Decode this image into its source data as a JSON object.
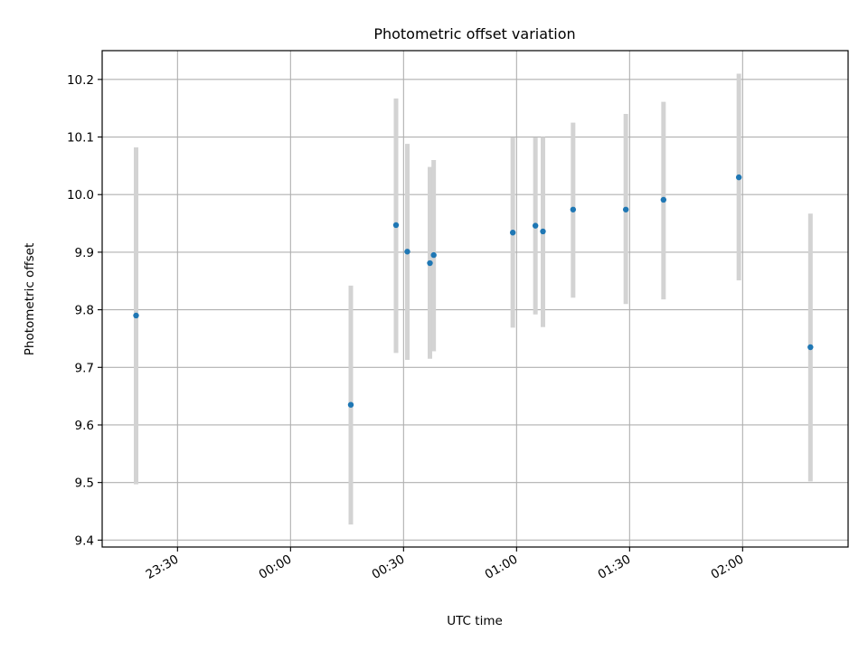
{
  "chart_data": {
    "type": "scatter",
    "title": "Photometric offset variation",
    "xlabel": "UTC time",
    "ylabel": "Photometric offset",
    "x_ticks": [
      "23:30",
      "00:00",
      "00:30",
      "01:00",
      "01:30",
      "02:00"
    ],
    "y_ticks": [
      "9.4",
      "9.5",
      "9.6",
      "9.7",
      "9.8",
      "9.9",
      "10.0",
      "10.1",
      "10.2"
    ],
    "xlim": [
      "23:10",
      "02:28"
    ],
    "ylim": [
      9.388,
      10.25
    ],
    "grid": true,
    "colors": {
      "point": "#1f77b4",
      "errorbar": "#d3d3d3",
      "grid": "#b0b0b0"
    },
    "series": [
      {
        "x": [
          "23:19",
          "00:16",
          "00:28",
          "00:31",
          "00:37",
          "00:38",
          "00:59",
          "01:05",
          "01:07",
          "01:15",
          "01:29",
          "01:39",
          "01:59",
          "02:18"
        ],
        "y": [
          9.79,
          9.635,
          9.947,
          9.901,
          9.881,
          9.895,
          9.934,
          9.946,
          9.936,
          9.974,
          9.974,
          9.991,
          10.03,
          9.735
        ],
        "yerr_low": [
          9.497,
          9.427,
          9.725,
          9.713,
          9.715,
          9.728,
          9.769,
          9.792,
          9.77,
          9.821,
          9.81,
          9.818,
          9.851,
          9.502
        ],
        "yerr_high": [
          10.082,
          9.842,
          10.167,
          10.088,
          10.048,
          10.06,
          10.099,
          10.099,
          10.1,
          10.125,
          10.14,
          10.161,
          10.21,
          9.967
        ]
      }
    ]
  }
}
